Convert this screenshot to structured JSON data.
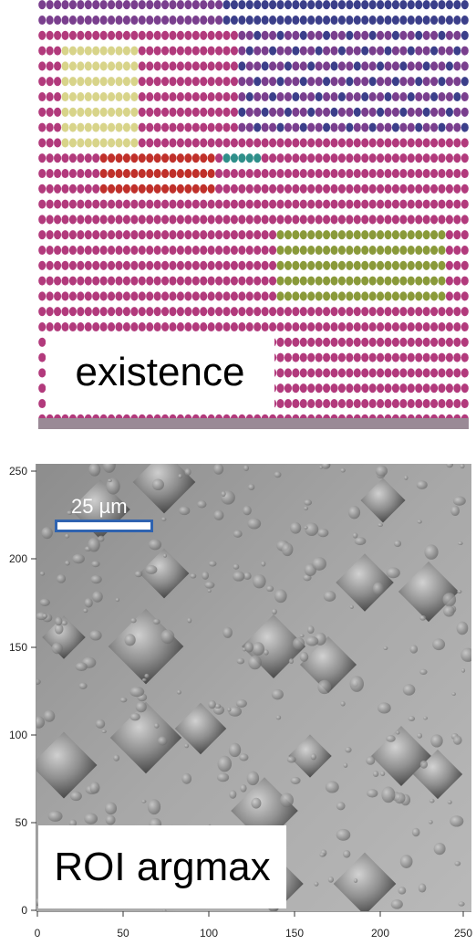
{
  "top_panel": {
    "label": "existence",
    "colors": {
      "magenta": "#b23a7c",
      "purple": "#7a3f8e",
      "yellow": "#d8d48a",
      "red": "#c0302a",
      "olive": "#8a9a3a",
      "teal": "#2f8f8a",
      "navy": "#3b3f8a",
      "stripe": "#ffffff"
    }
  },
  "bottom_panel": {
    "label": "ROI argmax",
    "scale_bar_label": "25 µm",
    "scale_bar_color": "#2f63b0",
    "x_ticks": [
      "0",
      "50",
      "100",
      "150",
      "200",
      "250"
    ],
    "y_ticks": [
      "0",
      "50",
      "100",
      "150",
      "200",
      "250"
    ]
  }
}
